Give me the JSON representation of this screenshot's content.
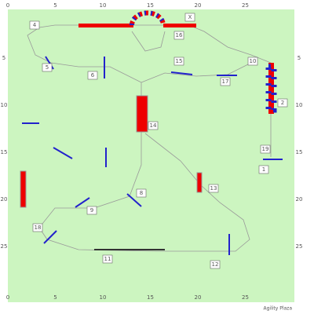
{
  "axis": {
    "x_labels": [
      "0",
      "5",
      "10",
      "15",
      "20",
      "25"
    ],
    "y_labels": [
      "5",
      "10",
      "15",
      "20",
      "25"
    ]
  },
  "obstacles": [
    {
      "label": "4"
    },
    {
      "label": "X"
    },
    {
      "label": "16"
    },
    {
      "label": "5"
    },
    {
      "label": "6"
    },
    {
      "label": "15"
    },
    {
      "label": "17"
    },
    {
      "label": "10"
    },
    {
      "label": "2"
    },
    {
      "label": "14"
    },
    {
      "label": "19"
    },
    {
      "label": "1"
    },
    {
      "label": "8"
    },
    {
      "label": "13"
    },
    {
      "label": "9"
    },
    {
      "label": "18"
    },
    {
      "label": "11"
    },
    {
      "label": "12"
    }
  ],
  "credit": "Agility Plaza"
}
